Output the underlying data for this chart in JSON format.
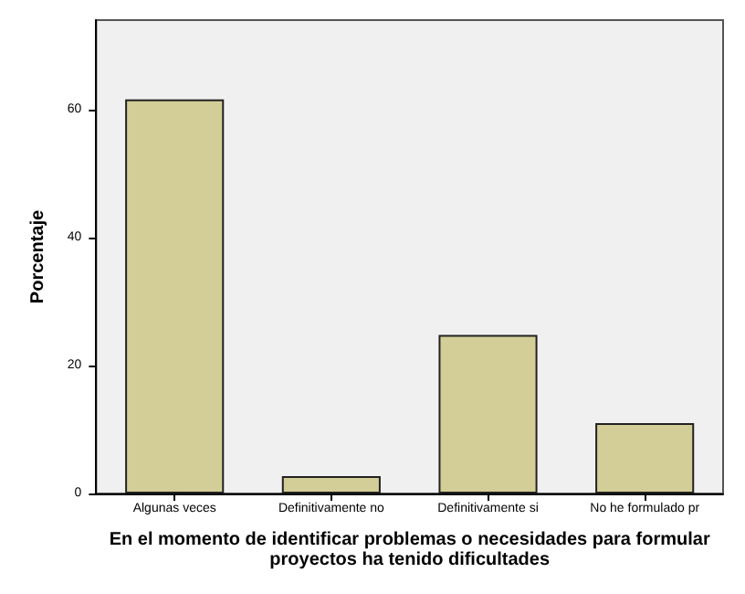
{
  "chart_data": {
    "type": "bar",
    "xlabel": "En el momento de identificar problemas o necesidades para formular\nproyectos ha tenido dificultades",
    "ylabel": "Porcentaje",
    "categories": [
      "Algunas veces",
      "Definitivamente no",
      "Definitivamente si",
      "No he formulado pr"
    ],
    "values": [
      61.6,
      2.7,
      24.8,
      11.0
    ],
    "color": "#d3ce97",
    "ylim": [
      0,
      74
    ],
    "yticks": [
      0,
      20,
      40,
      60
    ],
    "grid": false
  }
}
